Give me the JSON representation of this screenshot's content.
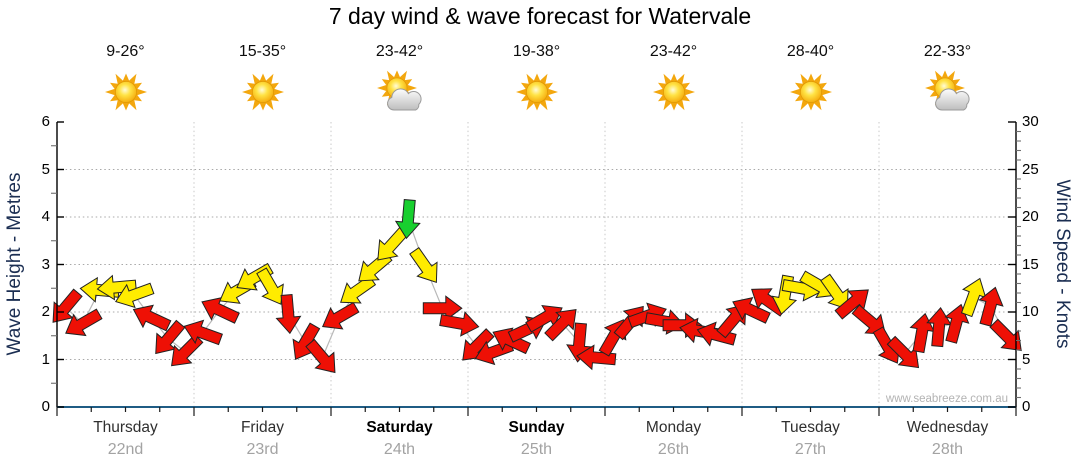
{
  "title": "7 day wind & wave forecast for Watervale",
  "watermark": "www.seabreeze.com.au",
  "days": [
    {
      "name": "Thursday",
      "date": "22nd",
      "temp": "9-26°",
      "icon": "sunny",
      "bold": false
    },
    {
      "name": "Friday",
      "date": "23rd",
      "temp": "15-35°",
      "icon": "sunny",
      "bold": false
    },
    {
      "name": "Saturday",
      "date": "24th",
      "temp": "23-42°",
      "icon": "partly-cloudy",
      "bold": true
    },
    {
      "name": "Sunday",
      "date": "25th",
      "temp": "19-38°",
      "icon": "sunny",
      "bold": true
    },
    {
      "name": "Monday",
      "date": "26th",
      "temp": "23-42°",
      "icon": "sunny",
      "bold": false
    },
    {
      "name": "Tuesday",
      "date": "27th",
      "temp": "28-40°",
      "icon": "sunny",
      "bold": false
    },
    {
      "name": "Wednesday",
      "date": "28th",
      "temp": "22-33°",
      "icon": "partly-cloudy",
      "bold": false
    }
  ],
  "axes": {
    "wave": {
      "label": "Wave Height - Metres",
      "ticks": [
        0,
        1,
        2,
        3,
        4,
        5,
        6
      ],
      "range": [
        0,
        6
      ]
    },
    "wind": {
      "label": "Wind Speed - Knots",
      "ticks": [
        0,
        5,
        10,
        15,
        20,
        25,
        30
      ],
      "range": [
        0,
        30
      ]
    }
  },
  "chart_data": {
    "type": "line",
    "title": "7 day wind & wave forecast for Watervale",
    "x_categories": [
      "Thursday 22nd",
      "Friday 23rd",
      "Saturday 24th",
      "Sunday 25th",
      "Monday 26th",
      "Tuesday 27th",
      "Wednesday 28th"
    ],
    "points_per_day": 8,
    "x_hours_step": 3,
    "ylabel_left": "Wave Height - Metres",
    "ylim_left": [
      0,
      6
    ],
    "ylabel_right": "Wind Speed - Knots",
    "ylim_right": [
      0,
      30
    ],
    "grid": "dotted horizontal at 1-5 m, dotted vertical at day boundaries",
    "colors": {
      "red": "#ee1005",
      "yellow": "#ffec00",
      "green": "#18cf2f",
      "line": "#b8b8b8",
      "xaxis": "#1f5c84"
    },
    "color_meaning": {
      "r": "light wind (red arrows)",
      "y": "moderate wind (yellow arrows)",
      "g": "fresh wind (green arrow)"
    },
    "wave_height_series_m": "flat near 0 along baseline",
    "series": [
      {
        "name": "Wind speed (knots); arrow rotation = wind direction (deg, 0=east/right, 90=down)",
        "points": [
          [
            10.5,
            130,
            "r"
          ],
          [
            8.8,
            150,
            "r"
          ],
          [
            12.3,
            185,
            "y"
          ],
          [
            12.6,
            175,
            "y"
          ],
          [
            11.8,
            160,
            "y"
          ],
          [
            9.4,
            205,
            "r"
          ],
          [
            7.2,
            130,
            "r"
          ],
          [
            5.8,
            135,
            "r"
          ],
          [
            7.8,
            200,
            "r"
          ],
          [
            10.2,
            205,
            "r"
          ],
          [
            12.2,
            150,
            "y"
          ],
          [
            13.6,
            150,
            "y"
          ],
          [
            12.6,
            60,
            "y"
          ],
          [
            9.8,
            85,
            "r"
          ],
          [
            6.8,
            120,
            "r"
          ],
          [
            5.2,
            50,
            "r"
          ],
          [
            9.5,
            150,
            "r"
          ],
          [
            12.2,
            145,
            "y"
          ],
          [
            14.6,
            140,
            "y"
          ],
          [
            17.0,
            132,
            "y"
          ],
          [
            19.8,
            95,
            "g"
          ],
          [
            14.8,
            55,
            "y"
          ],
          [
            10.4,
            0,
            "r"
          ],
          [
            8.8,
            10,
            "r"
          ],
          [
            6.4,
            135,
            "r"
          ],
          [
            5.8,
            160,
            "r"
          ],
          [
            7.0,
            205,
            "r"
          ],
          [
            8.2,
            335,
            "r"
          ],
          [
            9.4,
            330,
            "r"
          ],
          [
            8.8,
            315,
            "r"
          ],
          [
            6.8,
            95,
            "r"
          ],
          [
            5.2,
            185,
            "r"
          ],
          [
            7.4,
            300,
            "r"
          ],
          [
            9.0,
            310,
            "r"
          ],
          [
            9.6,
            340,
            "r"
          ],
          [
            9.0,
            10,
            "r"
          ],
          [
            8.6,
            0,
            "r"
          ],
          [
            8.0,
            190,
            "r"
          ],
          [
            7.6,
            195,
            "r"
          ],
          [
            9.2,
            310,
            "r"
          ],
          [
            10.2,
            205,
            "r"
          ],
          [
            11.2,
            215,
            "r"
          ],
          [
            11.8,
            100,
            "y"
          ],
          [
            12.5,
            10,
            "y"
          ],
          [
            12.8,
            30,
            "y"
          ],
          [
            12.0,
            55,
            "y"
          ],
          [
            11.0,
            320,
            "r"
          ],
          [
            9.0,
            40,
            "r"
          ],
          [
            6.4,
            60,
            "r"
          ],
          [
            5.6,
            45,
            "r"
          ],
          [
            7.8,
            280,
            "r"
          ],
          [
            8.4,
            275,
            "r"
          ],
          [
            8.8,
            285,
            "r"
          ],
          [
            11.6,
            290,
            "y"
          ],
          [
            10.6,
            285,
            "r"
          ],
          [
            7.4,
            45,
            "r"
          ]
        ]
      }
    ]
  }
}
